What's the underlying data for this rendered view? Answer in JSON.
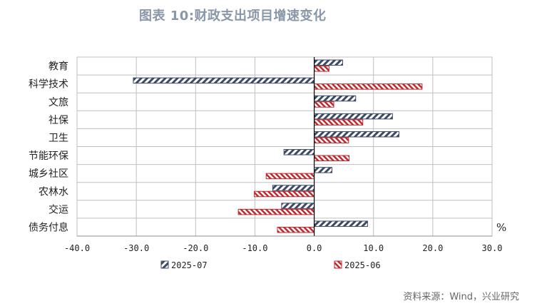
{
  "title": "图表 10:财政支出项目增速变化",
  "source": "资料来源：Wind，兴业研究",
  "unit": "%",
  "colors": {
    "series_2025_07": "#3d4a66",
    "series_2025_06": "#c0282d",
    "grid": "#bfbfbf"
  },
  "chart_data": {
    "type": "bar",
    "orientation": "horizontal",
    "categories": [
      "教育",
      "科学技术",
      "文旅",
      "社保",
      "卫生",
      "节能环保",
      "城乡社区",
      "农林水",
      "交运",
      "债务付息"
    ],
    "series": [
      {
        "name": "2025-07",
        "values": [
          4.8,
          -30.5,
          7.0,
          13.2,
          14.3,
          -5.1,
          3.0,
          -7.0,
          -5.5,
          9.0
        ]
      },
      {
        "name": "2025-06",
        "values": [
          2.5,
          18.2,
          3.3,
          8.2,
          5.8,
          5.9,
          -8.1,
          -10.1,
          -12.8,
          -6.2
        ]
      }
    ],
    "xlim": [
      -40,
      30
    ],
    "x_ticks": [
      "-40.0",
      "-30.0",
      "-20.0",
      "-10.0",
      "0.0",
      "10.0",
      "20.0",
      "30.0"
    ],
    "grid": true,
    "legend_position": "bottom"
  }
}
